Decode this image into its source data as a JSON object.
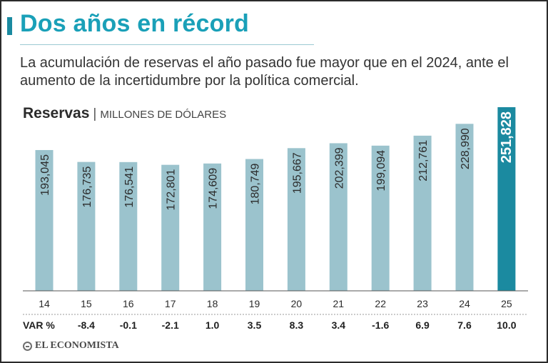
{
  "header": {
    "title": "Dos años en récord",
    "subtitle": "La acumulación de reservas el año pasado fue mayor que en el 2024, ante el aumento de la incertidumbre por la política comercial."
  },
  "chart_label": {
    "main": "Reservas",
    "separator": "|",
    "unit": "MILLONES DE DÓLARES"
  },
  "footer": {
    "logo_text": "EL ECONOMISTA"
  },
  "colors": {
    "bar": "#9bc3cd",
    "highlight": "#1b8aa0",
    "title": "#1aa0b8"
  },
  "chart_data": {
    "type": "bar",
    "title": "Reservas",
    "ylabel": "MILLONES DE DÓLARES",
    "xlabel": "",
    "categories": [
      "14",
      "15",
      "16",
      "17",
      "18",
      "19",
      "20",
      "21",
      "22",
      "23",
      "24",
      "25"
    ],
    "values": [
      193045,
      176735,
      176541,
      172801,
      174609,
      180749,
      195667,
      202399,
      199094,
      212761,
      228990,
      251828
    ],
    "value_labels": [
      "193,045",
      "176,735",
      "176,541",
      "172,801",
      "174,609",
      "180,749",
      "195,667",
      "202,399",
      "199,094",
      "212,761",
      "228,990",
      "251,828"
    ],
    "highlight_index": 11,
    "ylim": [
      0,
      251828
    ],
    "var_label": "VAR %",
    "var_values": [
      "",
      "-8.4",
      "-0.1",
      "-2.1",
      "1.0",
      "3.5",
      "8.3",
      "3.4",
      "-1.6",
      "6.9",
      "7.6",
      "10.0"
    ],
    "grid": false
  }
}
